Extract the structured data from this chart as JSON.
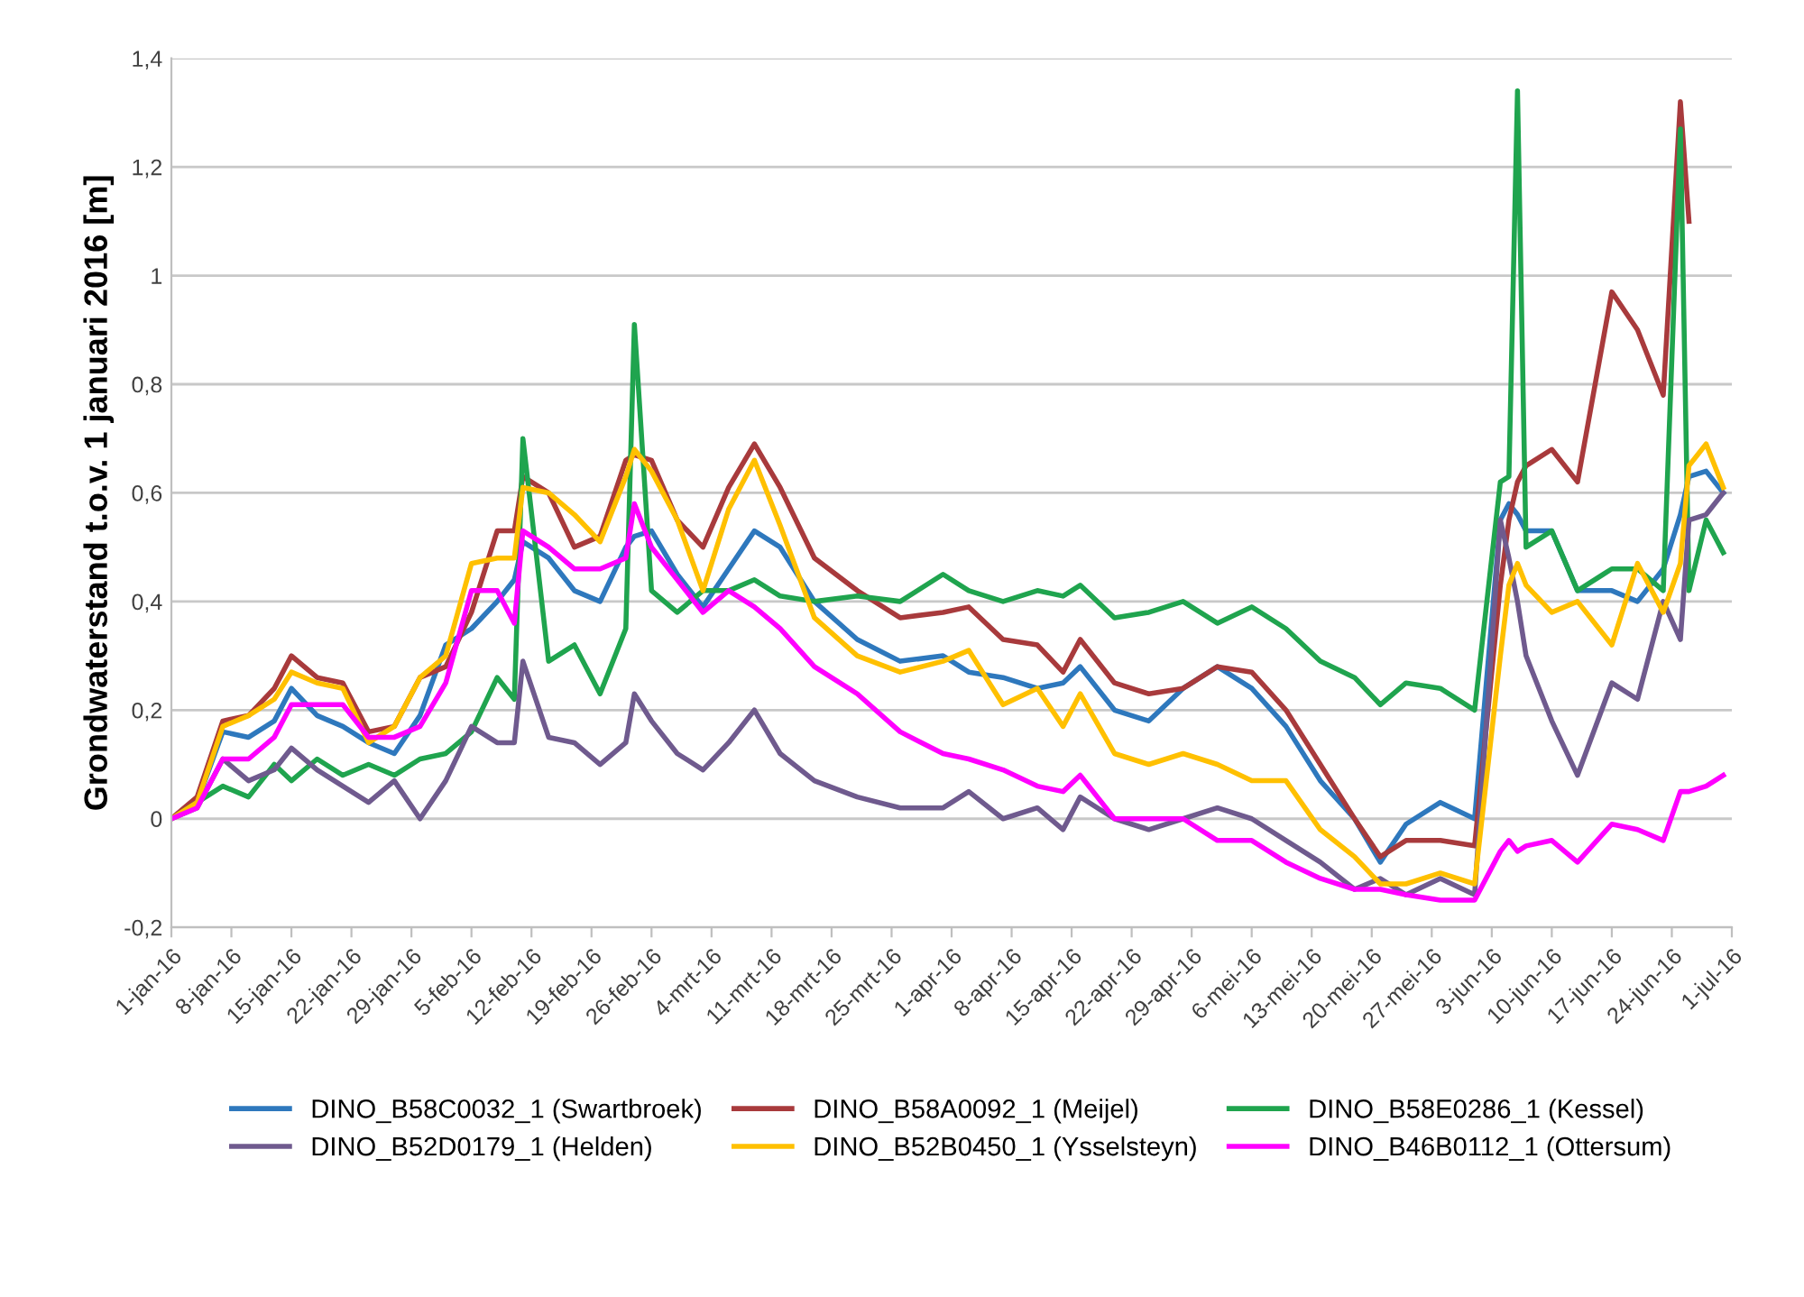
{
  "chart_data": {
    "type": "line",
    "ylabel": "Grondwaterstand t.o.v. 1 januari 2016 [m]",
    "x": [
      "2016-01-01",
      "2016-01-04",
      "2016-01-07",
      "2016-01-10",
      "2016-01-13",
      "2016-01-15",
      "2016-01-18",
      "2016-01-21",
      "2016-01-24",
      "2016-01-27",
      "2016-01-30",
      "2016-02-02",
      "2016-02-05",
      "2016-02-08",
      "2016-02-10",
      "2016-02-11",
      "2016-02-14",
      "2016-02-17",
      "2016-02-20",
      "2016-02-23",
      "2016-02-24",
      "2016-02-26",
      "2016-02-29",
      "2016-03-03",
      "2016-03-06",
      "2016-03-09",
      "2016-03-12",
      "2016-03-16",
      "2016-03-21",
      "2016-03-26",
      "2016-03-31",
      "2016-04-03",
      "2016-04-07",
      "2016-04-11",
      "2016-04-14",
      "2016-04-16",
      "2016-04-20",
      "2016-04-24",
      "2016-04-28",
      "2016-05-02",
      "2016-05-06",
      "2016-05-10",
      "2016-05-14",
      "2016-05-18",
      "2016-05-21",
      "2016-05-24",
      "2016-05-28",
      "2016-06-01",
      "2016-06-04",
      "2016-06-05",
      "2016-06-06",
      "2016-06-07",
      "2016-06-10",
      "2016-06-13",
      "2016-06-17",
      "2016-06-20",
      "2016-06-23",
      "2016-06-25",
      "2016-06-26",
      "2016-06-28",
      "2016-06-30"
    ],
    "series": [
      {
        "name": "DINO_B58C0032_1 (Swartbroek)",
        "color": "#2e78bd",
        "values": [
          0,
          0.03,
          0.16,
          0.15,
          0.18,
          0.24,
          0.19,
          0.17,
          0.14,
          0.12,
          0.19,
          0.32,
          0.35,
          0.4,
          0.44,
          0.51,
          0.48,
          0.42,
          0.4,
          0.5,
          0.52,
          0.53,
          0.45,
          0.39,
          0.46,
          0.53,
          0.5,
          0.4,
          0.33,
          0.29,
          0.3,
          0.27,
          0.26,
          0.24,
          0.25,
          0.28,
          0.2,
          0.18,
          0.24,
          0.28,
          0.24,
          0.17,
          0.07,
          0.0,
          -0.08,
          -0.01,
          0.03,
          0.0,
          0.55,
          0.58,
          0.56,
          0.53,
          0.53,
          0.42,
          0.42,
          0.4,
          0.46,
          0.56,
          0.63,
          0.64,
          0.6
        ]
      },
      {
        "name": "DINO_B58A0092_1 (Meijel)",
        "color": "#a83a3c",
        "values": [
          0,
          0.04,
          0.18,
          0.19,
          0.24,
          0.3,
          0.26,
          0.25,
          0.16,
          0.17,
          0.26,
          0.28,
          0.38,
          0.53,
          0.53,
          0.63,
          0.6,
          0.5,
          0.52,
          0.66,
          0.67,
          0.66,
          0.55,
          0.5,
          0.61,
          0.69,
          0.61,
          0.48,
          0.42,
          0.37,
          0.38,
          0.39,
          0.33,
          0.32,
          0.27,
          0.33,
          0.25,
          0.23,
          0.24,
          0.28,
          0.27,
          0.2,
          0.1,
          0.0,
          -0.07,
          -0.04,
          -0.04,
          -0.05,
          0.43,
          0.55,
          0.62,
          0.65,
          0.68,
          0.62,
          0.97,
          0.9,
          0.78,
          1.32,
          1.1,
          null,
          null
        ]
      },
      {
        "name": "DINO_B58E0286_1 (Kessel)",
        "color": "#1fa44e",
        "values": [
          0,
          0.03,
          0.06,
          0.04,
          0.1,
          0.07,
          0.11,
          0.08,
          0.1,
          0.08,
          0.11,
          0.12,
          0.16,
          0.26,
          0.22,
          0.7,
          0.29,
          0.32,
          0.23,
          0.35,
          0.91,
          0.42,
          0.38,
          0.42,
          0.42,
          0.44,
          0.41,
          0.4,
          0.41,
          0.4,
          0.45,
          0.42,
          0.4,
          0.42,
          0.41,
          0.43,
          0.37,
          0.38,
          0.4,
          0.36,
          0.39,
          0.35,
          0.29,
          0.26,
          0.21,
          0.25,
          0.24,
          0.2,
          0.62,
          0.63,
          1.34,
          0.5,
          0.53,
          0.42,
          0.46,
          0.46,
          0.42,
          1.27,
          0.42,
          0.55,
          0.49
        ]
      },
      {
        "name": "DINO_B52D0179_1 (Helden)",
        "color": "#6f5a8e",
        "values": [
          0,
          0.02,
          0.11,
          0.07,
          0.09,
          0.13,
          0.09,
          0.06,
          0.03,
          0.07,
          0.0,
          0.07,
          0.17,
          0.14,
          0.14,
          0.29,
          0.15,
          0.14,
          0.1,
          0.14,
          0.23,
          0.18,
          0.12,
          0.09,
          0.14,
          0.2,
          0.12,
          0.07,
          0.04,
          0.02,
          0.02,
          0.05,
          0.0,
          0.02,
          -0.02,
          0.04,
          0.0,
          -0.02,
          0.0,
          0.02,
          0.0,
          -0.04,
          -0.08,
          -0.13,
          -0.11,
          -0.14,
          -0.11,
          -0.14,
          0.55,
          0.48,
          0.4,
          0.3,
          0.18,
          0.08,
          0.25,
          0.22,
          0.4,
          0.33,
          0.55,
          0.56,
          0.6
        ]
      },
      {
        "name": "DINO_B52B0450_1 (Ysselsteyn)",
        "color": "#ffc000",
        "values": [
          0,
          0.03,
          0.17,
          0.19,
          0.22,
          0.27,
          0.25,
          0.24,
          0.14,
          0.17,
          0.26,
          0.3,
          0.47,
          0.48,
          0.48,
          0.61,
          0.6,
          0.56,
          0.51,
          0.63,
          0.68,
          0.64,
          0.55,
          0.42,
          0.57,
          0.66,
          0.54,
          0.37,
          0.3,
          0.27,
          0.29,
          0.31,
          0.21,
          0.24,
          0.17,
          0.23,
          0.12,
          0.1,
          0.12,
          0.1,
          0.07,
          0.07,
          -0.02,
          -0.07,
          -0.12,
          -0.12,
          -0.1,
          -0.12,
          0.3,
          0.43,
          0.47,
          0.43,
          0.38,
          0.4,
          0.32,
          0.47,
          0.38,
          0.47,
          0.65,
          0.69,
          0.61
        ]
      },
      {
        "name": "DINO_B46B0112_1 (Ottersum)",
        "color": "#ff00ff",
        "values": [
          0,
          0.02,
          0.11,
          0.11,
          0.15,
          0.21,
          0.21,
          0.21,
          0.15,
          0.15,
          0.17,
          0.25,
          0.42,
          0.42,
          0.36,
          0.53,
          0.5,
          0.46,
          0.46,
          0.48,
          0.58,
          0.5,
          0.44,
          0.38,
          0.42,
          0.39,
          0.35,
          0.28,
          0.23,
          0.16,
          0.12,
          0.11,
          0.09,
          0.06,
          0.05,
          0.08,
          0.0,
          0.0,
          0.0,
          -0.04,
          -0.04,
          -0.08,
          -0.11,
          -0.13,
          -0.13,
          -0.14,
          -0.15,
          -0.15,
          -0.06,
          -0.04,
          -0.06,
          -0.05,
          -0.04,
          -0.08,
          -0.01,
          -0.02,
          -0.04,
          0.05,
          0.05,
          0.06,
          0.08
        ]
      }
    ],
    "xlim": [
      "2016-01-01",
      "2016-07-01"
    ],
    "xticks": [
      {
        "value": "2016-01-01",
        "label": "1-jan-16"
      },
      {
        "value": "2016-01-08",
        "label": "8-jan-16"
      },
      {
        "value": "2016-01-15",
        "label": "15-jan-16"
      },
      {
        "value": "2016-01-22",
        "label": "22-jan-16"
      },
      {
        "value": "2016-01-29",
        "label": "29-jan-16"
      },
      {
        "value": "2016-02-05",
        "label": "5-feb-16"
      },
      {
        "value": "2016-02-12",
        "label": "12-feb-16"
      },
      {
        "value": "2016-02-19",
        "label": "19-feb-16"
      },
      {
        "value": "2016-02-26",
        "label": "26-feb-16"
      },
      {
        "value": "2016-03-04",
        "label": "4-mrt-16"
      },
      {
        "value": "2016-03-11",
        "label": "11-mrt-16"
      },
      {
        "value": "2016-03-18",
        "label": "18-mrt-16"
      },
      {
        "value": "2016-03-25",
        "label": "25-mrt-16"
      },
      {
        "value": "2016-04-01",
        "label": "1-apr-16"
      },
      {
        "value": "2016-04-08",
        "label": "8-apr-16"
      },
      {
        "value": "2016-04-15",
        "label": "15-apr-16"
      },
      {
        "value": "2016-04-22",
        "label": "22-apr-16"
      },
      {
        "value": "2016-04-29",
        "label": "29-apr-16"
      },
      {
        "value": "2016-05-06",
        "label": "6-mei-16"
      },
      {
        "value": "2016-05-13",
        "label": "13-mei-16"
      },
      {
        "value": "2016-05-20",
        "label": "20-mei-16"
      },
      {
        "value": "2016-05-27",
        "label": "27-mei-16"
      },
      {
        "value": "2016-06-03",
        "label": "3-jun-16"
      },
      {
        "value": "2016-06-10",
        "label": "10-jun-16"
      },
      {
        "value": "2016-06-17",
        "label": "17-jun-16"
      },
      {
        "value": "2016-06-24",
        "label": "24-jun-16"
      },
      {
        "value": "2016-07-01",
        "label": "1-jul-16"
      }
    ],
    "ylim": [
      -0.2,
      1.4
    ],
    "yticks": [
      {
        "value": -0.2,
        "label": "-0,2"
      },
      0,
      {
        "value": 0.2,
        "label": "0,2"
      },
      {
        "value": 0.4,
        "label": "0,4"
      },
      {
        "value": 0.6,
        "label": "0,6"
      },
      {
        "value": 0.8,
        "label": "0,8"
      },
      1,
      {
        "value": 1.2,
        "label": "1,2"
      },
      {
        "value": 1.4,
        "label": "1,4"
      }
    ],
    "grid": "y",
    "legend": "bottom",
    "marker": "none",
    "line_style": "solid"
  }
}
